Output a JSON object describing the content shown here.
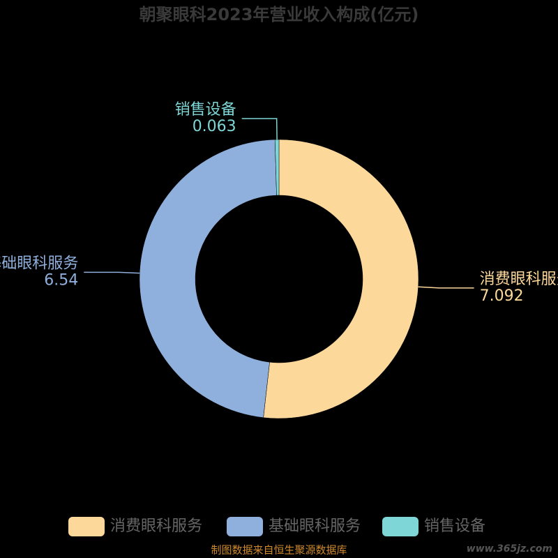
{
  "chart_data": {
    "type": "donut",
    "title": "朝聚眼科2023年营业收入构成(亿元)",
    "categories": [
      "消费眼科服务",
      "基础眼科服务",
      "销售设备"
    ],
    "values": [
      7.092,
      6.54,
      0.063
    ],
    "colors": [
      "#fdd89b",
      "#8fafdc",
      "#7fd6d6"
    ],
    "legend": "bottom"
  },
  "footer": {
    "source": "制图数据来自恒生聚源数据库",
    "watermark": "www.365jz.com"
  }
}
